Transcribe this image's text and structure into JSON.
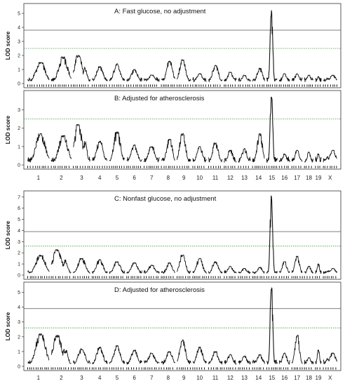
{
  "figure": {
    "chromosomes": [
      "1",
      "2",
      "3",
      "4",
      "5",
      "6",
      "7",
      "8",
      "9",
      "10",
      "11",
      "12",
      "13",
      "14",
      "15",
      "16",
      "17",
      "18",
      "19",
      "X"
    ]
  },
  "chart_data": [
    {
      "type": "line",
      "title": "A: Fast glucose, no adjustment",
      "ylabel": "LOD score",
      "xlabel": "",
      "ylim": [
        0,
        5.5
      ],
      "yticks": [
        0,
        1,
        2,
        3,
        4,
        5
      ],
      "thresholds": [
        {
          "value": 3.8,
          "style": "solid",
          "color": "#555555"
        },
        {
          "value": 2.5,
          "style": "dotted",
          "color": "#3a9a3a"
        }
      ],
      "peaks": [
        {
          "chr": "1",
          "pos": 0.6,
          "lod": 1.5
        },
        {
          "chr": "2",
          "pos": 0.6,
          "lod": 1.9
        },
        {
          "chr": "3",
          "pos": 0.3,
          "lod": 2.0
        },
        {
          "chr": "4",
          "pos": 0.5,
          "lod": 1.2
        },
        {
          "chr": "5",
          "pos": 0.5,
          "lod": 1.4
        },
        {
          "chr": "6",
          "pos": 0.5,
          "lod": 1.0
        },
        {
          "chr": "7",
          "pos": 0.5,
          "lod": 0.6
        },
        {
          "chr": "8",
          "pos": 0.6,
          "lod": 1.6
        },
        {
          "chr": "9",
          "pos": 0.4,
          "lod": 1.7
        },
        {
          "chr": "10",
          "pos": 0.5,
          "lod": 0.7
        },
        {
          "chr": "11",
          "pos": 0.5,
          "lod": 1.3
        },
        {
          "chr": "12",
          "pos": 0.5,
          "lod": 0.8
        },
        {
          "chr": "13",
          "pos": 0.5,
          "lod": 0.6
        },
        {
          "chr": "14",
          "pos": 0.6,
          "lod": 1.1
        },
        {
          "chr": "15",
          "pos": 0.45,
          "lod": 5.2
        },
        {
          "chr": "16",
          "pos": 0.5,
          "lod": 0.7
        },
        {
          "chr": "17",
          "pos": 0.5,
          "lod": 0.7
        },
        {
          "chr": "18",
          "pos": 0.5,
          "lod": 0.6
        },
        {
          "chr": "19",
          "pos": 0.5,
          "lod": 0.5
        },
        {
          "chr": "X",
          "pos": 0.7,
          "lod": 0.6
        }
      ]
    },
    {
      "type": "line",
      "title": "B: Adjusted for atherosclerosis",
      "ylabel": "LOD score",
      "xlabel": "",
      "ylim": [
        0,
        3.9
      ],
      "yticks": [
        0,
        1,
        2,
        3
      ],
      "thresholds": [
        {
          "value": 2.5,
          "style": "dotted",
          "color": "#3a9a3a"
        }
      ],
      "peaks": [
        {
          "chr": "1",
          "pos": 0.6,
          "lod": 1.7
        },
        {
          "chr": "2",
          "pos": 0.6,
          "lod": 1.6
        },
        {
          "chr": "3",
          "pos": 0.3,
          "lod": 2.2
        },
        {
          "chr": "4",
          "pos": 0.5,
          "lod": 1.3
        },
        {
          "chr": "5",
          "pos": 0.5,
          "lod": 1.8
        },
        {
          "chr": "6",
          "pos": 0.5,
          "lod": 1.1
        },
        {
          "chr": "7",
          "pos": 0.5,
          "lod": 1.0
        },
        {
          "chr": "8",
          "pos": 0.6,
          "lod": 1.4
        },
        {
          "chr": "9",
          "pos": 0.4,
          "lod": 1.7
        },
        {
          "chr": "10",
          "pos": 0.5,
          "lod": 1.0
        },
        {
          "chr": "11",
          "pos": 0.5,
          "lod": 1.2
        },
        {
          "chr": "12",
          "pos": 0.5,
          "lod": 0.8
        },
        {
          "chr": "13",
          "pos": 0.5,
          "lod": 0.9
        },
        {
          "chr": "14",
          "pos": 0.6,
          "lod": 1.7
        },
        {
          "chr": "15",
          "pos": 0.45,
          "lod": 3.8
        },
        {
          "chr": "16",
          "pos": 0.5,
          "lod": 0.6
        },
        {
          "chr": "17",
          "pos": 0.5,
          "lod": 0.8
        },
        {
          "chr": "18",
          "pos": 0.5,
          "lod": 0.7
        },
        {
          "chr": "19",
          "pos": 0.5,
          "lod": 0.6
        },
        {
          "chr": "X",
          "pos": 0.7,
          "lod": 0.8
        }
      ]
    },
    {
      "type": "line",
      "title": "C: Nonfast glucose, no adjustment",
      "ylabel": "LOD score",
      "xlabel": "",
      "ylim": [
        0,
        7.3
      ],
      "yticks": [
        0,
        1,
        2,
        3,
        4,
        5,
        6,
        7
      ],
      "thresholds": [
        {
          "value": 3.9,
          "style": "solid",
          "color": "#555555"
        },
        {
          "value": 2.6,
          "style": "dotted",
          "color": "#3a9a3a"
        }
      ],
      "peaks": [
        {
          "chr": "1",
          "pos": 0.6,
          "lod": 1.8
        },
        {
          "chr": "2",
          "pos": 0.3,
          "lod": 2.3
        },
        {
          "chr": "3",
          "pos": 0.5,
          "lod": 1.5
        },
        {
          "chr": "4",
          "pos": 0.5,
          "lod": 1.4
        },
        {
          "chr": "5",
          "pos": 0.5,
          "lod": 1.2
        },
        {
          "chr": "6",
          "pos": 0.5,
          "lod": 1.1
        },
        {
          "chr": "7",
          "pos": 0.5,
          "lod": 0.9
        },
        {
          "chr": "8",
          "pos": 0.6,
          "lod": 1.1
        },
        {
          "chr": "9",
          "pos": 0.4,
          "lod": 1.8
        },
        {
          "chr": "10",
          "pos": 0.5,
          "lod": 1.5
        },
        {
          "chr": "11",
          "pos": 0.5,
          "lod": 1.2
        },
        {
          "chr": "12",
          "pos": 0.5,
          "lod": 0.8
        },
        {
          "chr": "13",
          "pos": 0.5,
          "lod": 0.6
        },
        {
          "chr": "14",
          "pos": 0.6,
          "lod": 0.7
        },
        {
          "chr": "15",
          "pos": 0.45,
          "lod": 7.1
        },
        {
          "chr": "16",
          "pos": 0.5,
          "lod": 1.2
        },
        {
          "chr": "17",
          "pos": 0.5,
          "lod": 1.7
        },
        {
          "chr": "18",
          "pos": 0.5,
          "lod": 0.8
        },
        {
          "chr": "19",
          "pos": 0.5,
          "lod": 1.0
        },
        {
          "chr": "X",
          "pos": 0.7,
          "lod": 0.6
        }
      ]
    },
    {
      "type": "line",
      "title": "D: Adjusted for atherosclerosis",
      "ylabel": "LOD score",
      "xlabel": "",
      "ylim": [
        0,
        5.5
      ],
      "yticks": [
        0,
        1,
        2,
        3,
        4,
        5
      ],
      "thresholds": [
        {
          "value": 3.9,
          "style": "solid",
          "color": "#555555"
        },
        {
          "value": 2.6,
          "style": "dotted",
          "color": "#3a9a3a"
        }
      ],
      "peaks": [
        {
          "chr": "1",
          "pos": 0.6,
          "lod": 2.2
        },
        {
          "chr": "2",
          "pos": 0.3,
          "lod": 2.1
        },
        {
          "chr": "3",
          "pos": 0.5,
          "lod": 1.2
        },
        {
          "chr": "4",
          "pos": 0.5,
          "lod": 1.3
        },
        {
          "chr": "5",
          "pos": 0.5,
          "lod": 1.4
        },
        {
          "chr": "6",
          "pos": 0.5,
          "lod": 1.1
        },
        {
          "chr": "7",
          "pos": 0.5,
          "lod": 0.9
        },
        {
          "chr": "8",
          "pos": 0.6,
          "lod": 1.0
        },
        {
          "chr": "9",
          "pos": 0.4,
          "lod": 1.8
        },
        {
          "chr": "10",
          "pos": 0.5,
          "lod": 1.3
        },
        {
          "chr": "11",
          "pos": 0.5,
          "lod": 1.0
        },
        {
          "chr": "12",
          "pos": 0.5,
          "lod": 0.8
        },
        {
          "chr": "13",
          "pos": 0.5,
          "lod": 0.7
        },
        {
          "chr": "14",
          "pos": 0.6,
          "lod": 0.8
        },
        {
          "chr": "15",
          "pos": 0.45,
          "lod": 5.3
        },
        {
          "chr": "16",
          "pos": 0.5,
          "lod": 0.9
        },
        {
          "chr": "17",
          "pos": 0.5,
          "lod": 2.1
        },
        {
          "chr": "18",
          "pos": 0.5,
          "lod": 0.6
        },
        {
          "chr": "19",
          "pos": 0.5,
          "lod": 1.1
        },
        {
          "chr": "X",
          "pos": 0.7,
          "lod": 0.9
        }
      ]
    }
  ]
}
